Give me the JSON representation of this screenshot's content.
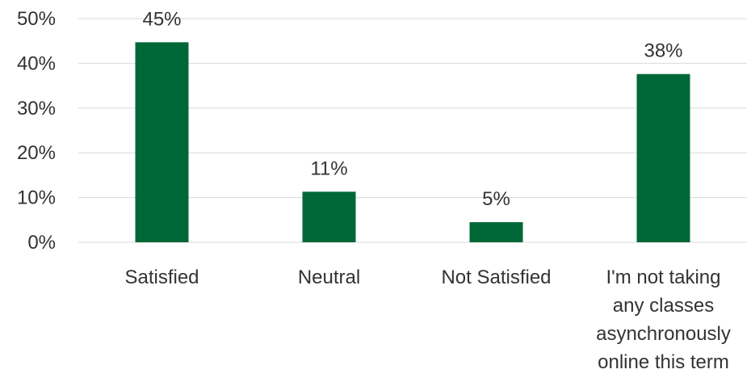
{
  "chart_data": {
    "type": "bar",
    "categories": [
      "Satisfied",
      "Neutral",
      "Not Satisfied",
      "I'm not taking any classes asynchronously online this term"
    ],
    "category_label_lines": [
      [
        "Satisfied"
      ],
      [
        "Neutral"
      ],
      [
        "Not Satisfied"
      ],
      [
        "I'm not taking",
        "any classes",
        "asynchronously",
        "online this term"
      ]
    ],
    "values": [
      45,
      11,
      5,
      38
    ],
    "plotted_values": [
      44.7,
      11.3,
      4.5,
      37.6
    ],
    "data_labels": [
      "45%",
      "11%",
      "5%",
      "38%"
    ],
    "yticks": [
      "0%",
      "10%",
      "20%",
      "30%",
      "40%",
      "50%"
    ],
    "ylim": [
      0,
      50
    ],
    "title": "",
    "xlabel": "",
    "ylabel": "",
    "grid": true,
    "legend": "none",
    "colors": {
      "bar": "#006837",
      "grid": "#d9d9d9",
      "text": "#333333"
    }
  }
}
